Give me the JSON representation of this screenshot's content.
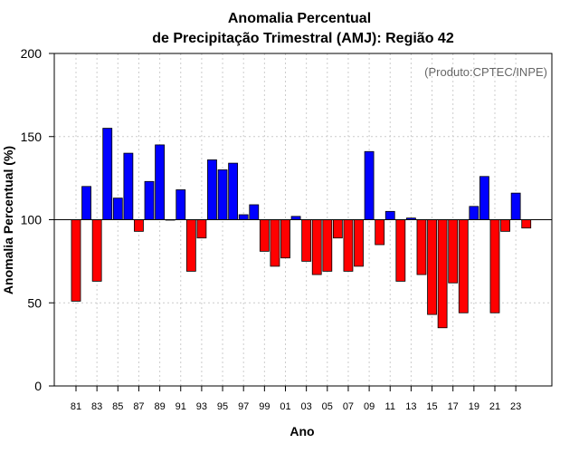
{
  "chart_data": {
    "type": "bar",
    "title": "Anomalia Percentual",
    "subtitle": "de Precipitação Trimestral (AMJ): Região 42",
    "xlabel": "Ano",
    "ylabel": "Anomalia Percentual (%)",
    "annotation": "(Produto:CPTEC/INPE)",
    "ylim": [
      0,
      200
    ],
    "yticks": [
      0,
      50,
      100,
      150,
      200
    ],
    "baseline": 100,
    "grid": true,
    "colors": {
      "above": "#0000ff",
      "below": "#ff0000",
      "edge": "#000000",
      "grid": "#cccccc"
    },
    "categories": [
      "81",
      "82",
      "83",
      "84",
      "85",
      "86",
      "87",
      "88",
      "89",
      "90",
      "91",
      "92",
      "93",
      "94",
      "95",
      "96",
      "97",
      "98",
      "99",
      "00",
      "01",
      "02",
      "03",
      "04",
      "05",
      "06",
      "07",
      "08",
      "09",
      "10",
      "11",
      "12",
      "13",
      "14",
      "15",
      "16",
      "17",
      "18",
      "19",
      "20",
      "21",
      "22",
      "23",
      "24"
    ],
    "xtick_labels": [
      "81",
      "83",
      "85",
      "87",
      "89",
      "91",
      "93",
      "95",
      "97",
      "99",
      "01",
      "03",
      "05",
      "07",
      "09",
      "11",
      "13",
      "15",
      "17",
      "19",
      "21",
      "23"
    ],
    "values": [
      51,
      120,
      63,
      155,
      113,
      140,
      93,
      123,
      145,
      100,
      118,
      69,
      89,
      136,
      130,
      134,
      103,
      109,
      81,
      72,
      77,
      102,
      75,
      67,
      69,
      89,
      69,
      72,
      141,
      85,
      105,
      63,
      101,
      67,
      43,
      35,
      62,
      44,
      108,
      126,
      44,
      93,
      116,
      95
    ]
  }
}
